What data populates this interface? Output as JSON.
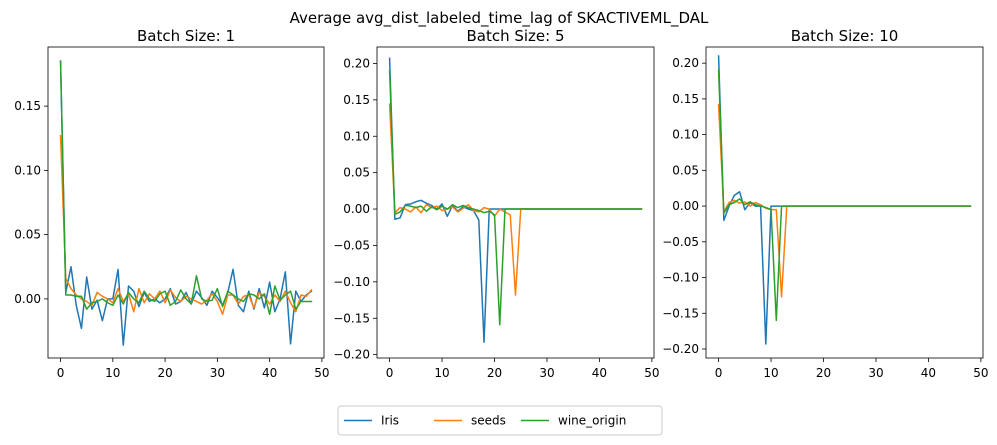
{
  "figure": {
    "suptitle": "Average avg_dist_labeled_time_lag of SKACTIVEML_DAL"
  },
  "legend": {
    "placement": "bottom-center",
    "entries": [
      "Iris",
      "seeds",
      "wine_origin"
    ]
  },
  "colors": {
    "Iris": "#1f77b4",
    "seeds": "#ff7f0e",
    "wine_origin": "#2ca02c"
  },
  "chart_data": [
    {
      "type": "line",
      "title": "Batch Size: 1",
      "xlabel": "",
      "ylabel": "",
      "xlim": [
        -2.4,
        50.4
      ],
      "ylim": [
        -0.046,
        0.196
      ],
      "xticks": [
        0,
        10,
        20,
        30,
        40,
        50
      ],
      "yticks": [
        0.0,
        0.05,
        0.1,
        0.15
      ],
      "ytick_labels": [
        "0.00",
        "0.05",
        "0.10",
        "0.15"
      ],
      "grid": false,
      "series": [
        {
          "name": "Iris",
          "x": [
            0,
            1,
            2,
            3,
            4,
            5,
            6,
            7,
            8,
            9,
            10,
            11,
            12,
            13,
            14,
            15,
            16,
            17,
            18,
            19,
            20,
            21,
            22,
            23,
            24,
            25,
            26,
            27,
            28,
            29,
            30,
            31,
            32,
            33,
            34,
            35,
            36,
            37,
            38,
            39,
            40,
            41,
            42,
            43,
            44,
            45,
            46,
            47,
            48
          ],
          "y": [
            0.185,
            0.005,
            0.025,
            -0.005,
            -0.023,
            0.017,
            -0.008,
            -0.001,
            -0.017,
            0.0,
            0.0,
            0.023,
            -0.036,
            0.01,
            0.006,
            -0.006,
            0.005,
            -0.002,
            0.0,
            -0.003,
            0.0,
            0.008,
            -0.004,
            -0.002,
            0.005,
            -0.004,
            0.006,
            0.001,
            -0.005,
            0.006,
            0.001,
            -0.005,
            0.005,
            0.023,
            -0.005,
            -0.01,
            0.006,
            -0.008,
            0.008,
            -0.007,
            0.013,
            -0.01,
            0.0,
            0.021,
            -0.035,
            0.006,
            -0.002,
            0.003,
            0.006
          ]
        },
        {
          "name": "seeds",
          "x": [
            0,
            1,
            2,
            3,
            4,
            5,
            6,
            7,
            8,
            9,
            10,
            11,
            12,
            13,
            14,
            15,
            16,
            17,
            18,
            19,
            20,
            21,
            22,
            23,
            24,
            25,
            26,
            27,
            28,
            29,
            30,
            31,
            32,
            33,
            34,
            35,
            36,
            37,
            38,
            39,
            40,
            41,
            42,
            43,
            44,
            45,
            46,
            47,
            48
          ],
          "y": [
            0.127,
            0.016,
            0.008,
            0.003,
            0.0,
            -0.002,
            -0.005,
            0.005,
            0.002,
            0.0,
            -0.003,
            0.008,
            -0.002,
            0.004,
            -0.01,
            0.008,
            -0.003,
            0.004,
            0.0,
            0.006,
            -0.003,
            0.007,
            0.001,
            -0.002,
            0.002,
            0.0,
            -0.002,
            -0.004,
            -0.001,
            0.004,
            -0.002,
            -0.012,
            0.003,
            0.003,
            -0.004,
            0.002,
            0.003,
            -0.007,
            0.005,
            0.002,
            -0.004,
            0.003,
            -0.002,
            0.006,
            -0.003,
            -0.01,
            0.003,
            0.002,
            0.007
          ]
        },
        {
          "name": "wine_origin",
          "x": [
            0,
            1,
            2,
            3,
            4,
            5,
            6,
            7,
            8,
            9,
            10,
            11,
            12,
            13,
            14,
            15,
            16,
            17,
            18,
            19,
            20,
            21,
            22,
            23,
            24,
            25,
            26,
            27,
            28,
            29,
            30,
            31,
            32,
            33,
            34,
            35,
            36,
            37,
            38,
            39,
            40,
            41,
            42,
            43,
            44,
            45,
            46,
            47,
            48
          ],
          "y": [
            0.185,
            0.003,
            0.003,
            0.002,
            0.002,
            -0.008,
            -0.003,
            -0.002,
            0.0,
            -0.003,
            -0.005,
            0.003,
            -0.004,
            0.005,
            0.0,
            -0.003,
            0.006,
            0.0,
            -0.002,
            0.004,
            0.006,
            -0.005,
            -0.002,
            0.007,
            0.0,
            -0.004,
            0.018,
            0.0,
            -0.002,
            -0.001,
            0.008,
            -0.006,
            0.006,
            0.003,
            0.0,
            -0.002,
            0.004,
            0.003,
            0.0,
            0.004,
            -0.012,
            0.01,
            -0.001,
            0.003,
            0.006,
            -0.008,
            -0.002,
            -0.002,
            -0.002
          ]
        }
      ]
    },
    {
      "type": "line",
      "title": "Batch Size: 5",
      "xlabel": "",
      "ylabel": "",
      "xlim": [
        -2.4,
        50.4
      ],
      "ylim": [
        -0.2046,
        0.2226
      ],
      "xticks": [
        0,
        10,
        20,
        30,
        40,
        50
      ],
      "yticks": [
        0.2,
        0.15,
        0.1,
        0.05,
        0.0,
        -0.05,
        -0.1,
        -0.15,
        -0.2
      ],
      "ytick_labels": [
        "0.20",
        "0.15",
        "0.10",
        "0.05",
        "0.00",
        "−0.05",
        "−0.10",
        "−0.15",
        "−0.20"
      ],
      "grid": false,
      "series": [
        {
          "name": "Iris",
          "x": [
            0,
            1,
            2,
            3,
            4,
            5,
            6,
            7,
            8,
            9,
            10,
            11,
            12,
            13,
            14,
            15,
            16,
            17,
            18,
            19,
            20,
            21,
            22,
            23,
            24,
            25,
            26,
            27,
            28,
            29,
            30,
            31,
            32,
            33,
            34,
            35,
            36,
            37,
            38,
            39,
            40,
            41,
            42,
            43,
            44,
            45,
            46,
            47,
            48
          ],
          "y": [
            0.207,
            -0.014,
            -0.012,
            0.006,
            0.007,
            0.01,
            0.012,
            0.008,
            0.005,
            0.0,
            0.007,
            -0.01,
            0.005,
            -0.003,
            0.003,
            0.0,
            -0.002,
            -0.015,
            -0.183,
            0.0,
            0.0,
            0.0,
            0.0,
            0.0,
            0.0,
            0.0,
            0.0,
            0.0,
            0.0,
            0.0,
            0.0,
            0.0,
            0.0,
            0.0,
            0.0,
            0.0,
            0.0,
            0.0,
            0.0,
            0.0,
            0.0,
            0.0,
            0.0,
            0.0,
            0.0,
            0.0,
            0.0,
            0.0,
            0.0
          ]
        },
        {
          "name": "seeds",
          "x": [
            0,
            1,
            2,
            3,
            4,
            5,
            6,
            7,
            8,
            9,
            10,
            11,
            12,
            13,
            14,
            15,
            16,
            17,
            18,
            19,
            20,
            21,
            22,
            23,
            24,
            25,
            26,
            27,
            28,
            29,
            30,
            31,
            32,
            33,
            34,
            35,
            36,
            37,
            38,
            39,
            40,
            41,
            42,
            43,
            44,
            45,
            46,
            47,
            48
          ],
          "y": [
            0.144,
            -0.005,
            0.002,
            0.0,
            -0.004,
            0.003,
            -0.005,
            0.006,
            0.002,
            0.004,
            -0.002,
            0.0,
            0.003,
            -0.004,
            0.001,
            0.006,
            -0.002,
            -0.004,
            0.002,
            0.0,
            -0.01,
            0.0,
            -0.004,
            -0.008,
            -0.118,
            0.0,
            0.0,
            0.0,
            0.0,
            0.0,
            0.0,
            0.0,
            0.0,
            0.0,
            0.0,
            0.0,
            0.0,
            0.0,
            0.0,
            0.0,
            0.0,
            0.0,
            0.0,
            0.0,
            0.0,
            0.0,
            0.0,
            0.0,
            0.0
          ]
        },
        {
          "name": "wine_origin",
          "x": [
            0,
            1,
            2,
            3,
            4,
            5,
            6,
            7,
            8,
            9,
            10,
            11,
            12,
            13,
            14,
            15,
            16,
            17,
            18,
            19,
            20,
            21,
            22,
            23,
            24,
            25,
            26,
            27,
            28,
            29,
            30,
            31,
            32,
            33,
            34,
            35,
            36,
            37,
            38,
            39,
            40,
            41,
            42,
            43,
            44,
            45,
            46,
            47,
            48
          ],
          "y": [
            0.19,
            -0.007,
            -0.004,
            0.005,
            0.004,
            0.002,
            0.004,
            -0.003,
            0.003,
            -0.001,
            0.004,
            0.0,
            0.006,
            0.002,
            0.005,
            0.002,
            0.0,
            -0.002,
            -0.005,
            -0.003,
            -0.008,
            -0.159,
            0.0,
            0.0,
            0.0,
            0.0,
            0.0,
            0.0,
            0.0,
            0.0,
            0.0,
            0.0,
            0.0,
            0.0,
            0.0,
            0.0,
            0.0,
            0.0,
            0.0,
            0.0,
            0.0,
            0.0,
            0.0,
            0.0,
            0.0,
            0.0,
            0.0,
            0.0,
            0.0
          ]
        }
      ]
    },
    {
      "type": "line",
      "title": "Batch Size: 10",
      "xlabel": "",
      "ylabel": "",
      "xlim": [
        -2.4,
        50.4
      ],
      "ylim": [
        -0.2126,
        0.2226
      ],
      "xticks": [
        0,
        10,
        20,
        30,
        40,
        50
      ],
      "yticks": [
        0.2,
        0.15,
        0.1,
        0.05,
        0.0,
        -0.05,
        -0.1,
        -0.15,
        -0.2
      ],
      "ytick_labels": [
        "0.20",
        "0.15",
        "0.10",
        "0.05",
        "0.00",
        "−0.05",
        "−0.10",
        "−0.15",
        "−0.20"
      ],
      "grid": false,
      "series": [
        {
          "name": "Iris",
          "x": [
            0,
            1,
            2,
            3,
            4,
            5,
            6,
            7,
            8,
            9,
            10,
            11,
            12,
            13,
            14,
            15,
            16,
            17,
            18,
            19,
            20,
            21,
            22,
            23,
            24,
            25,
            26,
            27,
            28,
            29,
            30,
            31,
            32,
            33,
            34,
            35,
            36,
            37,
            38,
            39,
            40,
            41,
            42,
            43,
            44,
            45,
            46,
            47,
            48
          ],
          "y": [
            0.21,
            -0.02,
            0.0,
            0.015,
            0.02,
            -0.005,
            0.005,
            0.0,
            0.0,
            -0.193,
            0.0,
            0.0,
            0.0,
            0.0,
            0.0,
            0.0,
            0.0,
            0.0,
            0.0,
            0.0,
            0.0,
            0.0,
            0.0,
            0.0,
            0.0,
            0.0,
            0.0,
            0.0,
            0.0,
            0.0,
            0.0,
            0.0,
            0.0,
            0.0,
            0.0,
            0.0,
            0.0,
            0.0,
            0.0,
            0.0,
            0.0,
            0.0,
            0.0,
            0.0,
            0.0,
            0.0,
            0.0,
            0.0,
            0.0
          ]
        },
        {
          "name": "seeds",
          "x": [
            0,
            1,
            2,
            3,
            4,
            5,
            6,
            7,
            8,
            9,
            10,
            11,
            12,
            13,
            14,
            15,
            16,
            17,
            18,
            19,
            20,
            21,
            22,
            23,
            24,
            25,
            26,
            27,
            28,
            29,
            30,
            31,
            32,
            33,
            34,
            35,
            36,
            37,
            38,
            39,
            40,
            41,
            42,
            43,
            44,
            45,
            46,
            47,
            48
          ],
          "y": [
            0.142,
            -0.008,
            0.005,
            0.008,
            0.004,
            0.006,
            0.0,
            0.005,
            0.002,
            -0.003,
            -0.005,
            -0.005,
            -0.127,
            0.0,
            0.0,
            0.0,
            0.0,
            0.0,
            0.0,
            0.0,
            0.0,
            0.0,
            0.0,
            0.0,
            0.0,
            0.0,
            0.0,
            0.0,
            0.0,
            0.0,
            0.0,
            0.0,
            0.0,
            0.0,
            0.0,
            0.0,
            0.0,
            0.0,
            0.0,
            0.0,
            0.0,
            0.0,
            0.0,
            0.0,
            0.0,
            0.0,
            0.0,
            0.0,
            0.0
          ]
        },
        {
          "name": "wine_origin",
          "x": [
            0,
            1,
            2,
            3,
            4,
            5,
            6,
            7,
            8,
            9,
            10,
            11,
            12,
            13,
            14,
            15,
            16,
            17,
            18,
            19,
            20,
            21,
            22,
            23,
            24,
            25,
            26,
            27,
            28,
            29,
            30,
            31,
            32,
            33,
            34,
            35,
            36,
            37,
            38,
            39,
            40,
            41,
            42,
            43,
            44,
            45,
            46,
            47,
            48
          ],
          "y": [
            0.19,
            -0.01,
            0.002,
            0.005,
            0.01,
            0.002,
            0.006,
            0.002,
            0.0,
            -0.002,
            -0.005,
            -0.16,
            0.0,
            0.0,
            0.0,
            0.0,
            0.0,
            0.0,
            0.0,
            0.0,
            0.0,
            0.0,
            0.0,
            0.0,
            0.0,
            0.0,
            0.0,
            0.0,
            0.0,
            0.0,
            0.0,
            0.0,
            0.0,
            0.0,
            0.0,
            0.0,
            0.0,
            0.0,
            0.0,
            0.0,
            0.0,
            0.0,
            0.0,
            0.0,
            0.0,
            0.0,
            0.0,
            0.0,
            0.0
          ]
        }
      ]
    }
  ]
}
